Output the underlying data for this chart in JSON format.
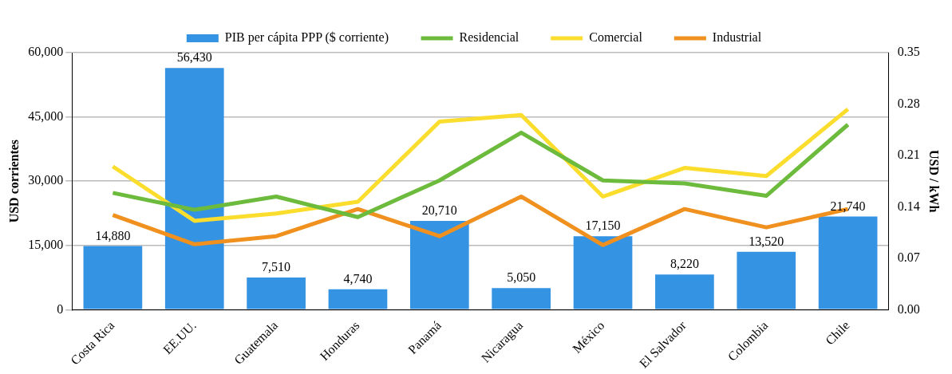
{
  "chart_data": {
    "type": "bar",
    "ylabel": "USD corrientes",
    "y2label": "USD / kWh",
    "categories": [
      "Costa Rica",
      "EE.UU.",
      "Guatemala",
      "Honduras",
      "Panamá",
      "Nicaragua",
      "México",
      "El Salvador",
      "Colombia",
      "Chile"
    ],
    "series": [
      {
        "name": "PIB per cápita PPP ($ corriente)",
        "color": "#3593e3",
        "values": [
          14880,
          56430,
          7510,
          4740,
          20710,
          5050,
          17150,
          8220,
          13520,
          21740
        ],
        "value_labels": [
          "14,880",
          "56,430",
          "7,510",
          "4,740",
          "20,710",
          "5,050",
          "17,150",
          "8,220",
          "13,520",
          "21,740"
        ]
      },
      {
        "name": "Residencial",
        "type": "line",
        "axis": "y2",
        "color": "#6cbb3c",
        "values": [
          0.159,
          0.136,
          0.154,
          0.126,
          0.176,
          0.241,
          0.176,
          0.172,
          0.155,
          0.252
        ]
      },
      {
        "name": "Comercial",
        "type": "line",
        "axis": "y2",
        "color": "#fbdd2e",
        "values": [
          0.195,
          0.121,
          0.131,
          0.147,
          0.256,
          0.265,
          0.154,
          0.193,
          0.182,
          0.273
        ]
      },
      {
        "name": "Industrial",
        "type": "line",
        "axis": "y2",
        "color": "#f0901e",
        "values": [
          0.129,
          0.089,
          0.1,
          0.137,
          0.1,
          0.154,
          0.088,
          0.137,
          0.112,
          0.137
        ]
      }
    ],
    "ylim": [
      0,
      60000
    ],
    "yticks": [
      {
        "value": 0,
        "label": "0"
      },
      {
        "value": 15000,
        "label": "15,000"
      },
      {
        "value": 30000,
        "label": "30,000"
      },
      {
        "value": 45000,
        "label": "45,000"
      },
      {
        "value": 60000,
        "label": "60,000"
      }
    ],
    "y2lim": [
      0,
      0.35
    ],
    "y2ticks": [
      {
        "value": 0,
        "label": "0.00"
      },
      {
        "value": 0.07,
        "label": "0.07"
      },
      {
        "value": 0.14,
        "label": "0.14"
      },
      {
        "value": 0.21,
        "label": "0.21"
      },
      {
        "value": 0.28,
        "label": "0.28"
      },
      {
        "value": 0.35,
        "label": "0.35"
      }
    ],
    "grid": "y",
    "legend": "top",
    "marker": "none",
    "line_style": "solid"
  }
}
